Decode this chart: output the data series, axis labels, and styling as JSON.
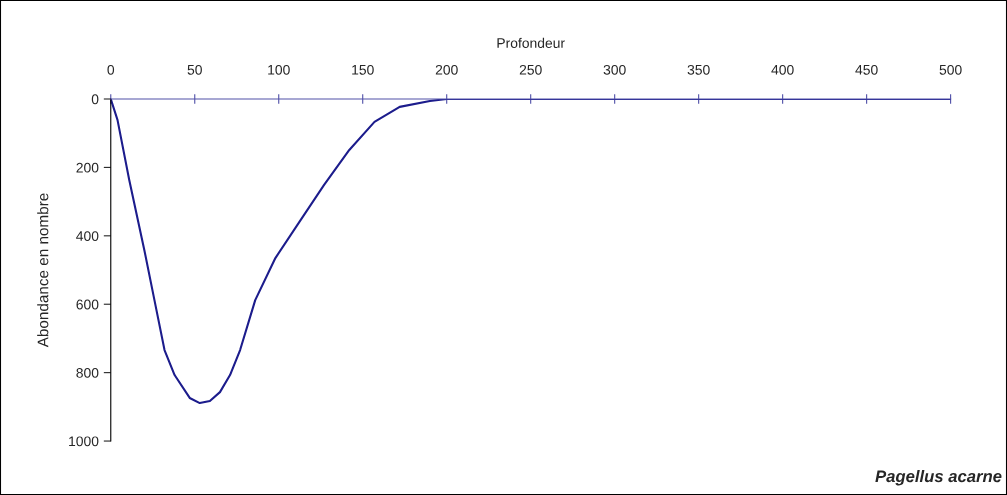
{
  "chart_data": {
    "type": "line",
    "xlabel": "Profondeur",
    "ylabel": "Abondance en nombre",
    "x": [
      0,
      4,
      11,
      20,
      26,
      32,
      38,
      47,
      53,
      59,
      65,
      71,
      77,
      86,
      98,
      113,
      127,
      142,
      157,
      172,
      190,
      200,
      250,
      300,
      350,
      400,
      450,
      500
    ],
    "series": [
      {
        "color": "#1c1c8c",
        "values": [
          0,
          61,
          237,
          442,
          588,
          734,
          807,
          874,
          889,
          883,
          857,
          807,
          734,
          588,
          465,
          354,
          251,
          149,
          67,
          23,
          6,
          0,
          0,
          0,
          0,
          0,
          0,
          0
        ]
      }
    ],
    "xlim": [
      0,
      500
    ],
    "xticks": [
      0,
      50,
      100,
      150,
      200,
      250,
      300,
      350,
      400,
      450,
      500
    ],
    "ylim": [
      1000,
      0
    ],
    "yticks": [
      0,
      200,
      400,
      600,
      800,
      1000
    ],
    "grid": false,
    "legend": false,
    "marker": "none",
    "line_style": "solid",
    "annotations": [
      "Pagellus acarne"
    ]
  }
}
